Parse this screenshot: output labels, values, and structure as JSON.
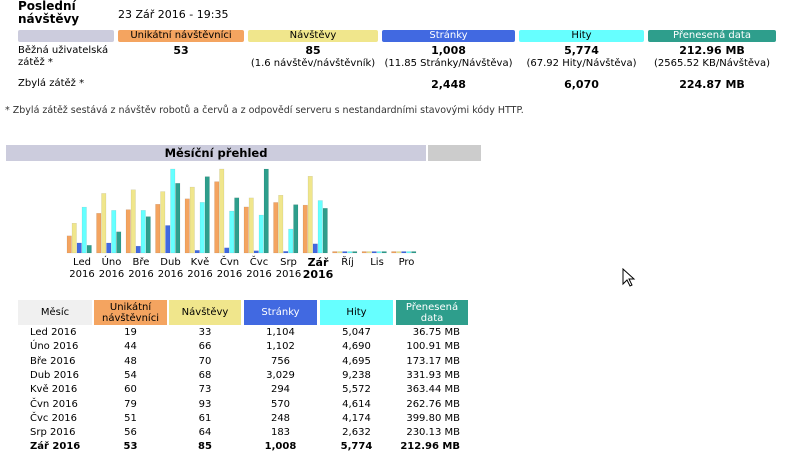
{
  "summary": {
    "title": "Poslední návštěvy",
    "date": "23 Zář 2016 - 19:35",
    "columns": [
      "Unikátní návštěvníci",
      "Návštěvy",
      "Stránky",
      "Hity",
      "Přenesená data"
    ],
    "colors": [
      "#f4a460",
      "#f0e68c",
      "#4169e1",
      "#66ffff",
      "#2e9e8c"
    ],
    "row1_label": "Běžná uživatelská zátěž *",
    "row1": [
      "53",
      "85",
      "1,008",
      "5,774",
      "212.96 MB"
    ],
    "row1_sub": [
      "",
      "(1.6 návštěv/návštěvník)",
      "(11.85 Stránky/Návštěva)",
      "(67.92 Hity/Návštěva)",
      "(2565.52 KB/Návštěva)"
    ],
    "row2_label": "Zbylá zátěž *",
    "row2": [
      "",
      "",
      "2,448",
      "6,070",
      "224.87 MB"
    ],
    "note": "* Zbylá zátěž sestává z návštěv robotů a červů a z odpovědí serveru s nestandardními stavovými kódy HTTP."
  },
  "monthly": {
    "title": "Měsíční přehled",
    "chart_data": {
      "type": "bar",
      "categories": [
        "Led 2016",
        "Úno 2016",
        "Bře 2016",
        "Dub 2016",
        "Kvě 2016",
        "Čvn 2016",
        "Čvc 2016",
        "Srp 2016",
        "Zář 2016",
        "Říj 2016",
        "Lis 2016",
        "Pro 2016"
      ],
      "series": [
        {
          "name": "Unikátní návštěvníci",
          "color": "#f4a460",
          "values": [
            19,
            44,
            48,
            54,
            60,
            79,
            51,
            56,
            53,
            0,
            0,
            0
          ]
        },
        {
          "name": "Návštěvy",
          "color": "#f0e68c",
          "values": [
            33,
            66,
            70,
            68,
            73,
            93,
            61,
            64,
            85,
            0,
            0,
            0
          ]
        },
        {
          "name": "Stránky",
          "color": "#4169e1",
          "values": [
            1104,
            1102,
            756,
            3029,
            294,
            570,
            248,
            183,
            1008,
            0,
            0,
            0
          ]
        },
        {
          "name": "Hity",
          "color": "#66ffff",
          "values": [
            5047,
            4690,
            4695,
            9238,
            5572,
            4614,
            4174,
            2632,
            5774,
            0,
            0,
            0
          ]
        },
        {
          "name": "Přenesená data",
          "color": "#2e9e8c",
          "values": [
            36.75,
            100.91,
            173.17,
            331.93,
            363.44,
            262.76,
            399.8,
            230.13,
            212.96,
            0,
            0,
            0
          ]
        }
      ],
      "current_index": 8
    },
    "labels_top": [
      "Led",
      "Úno",
      "Bře",
      "Dub",
      "Kvě",
      "Čvn",
      "Čvc",
      "Srp",
      "Zář",
      "Říj",
      "Lis",
      "Pro"
    ],
    "labels_bottom": [
      "2016",
      "2016",
      "2016",
      "2016",
      "2016",
      "2016",
      "2016",
      "2016",
      "2016",
      "",
      "",
      ""
    ],
    "table_headers": [
      "Měsíc",
      "Unikátní návštěvníci",
      "Návštěvy",
      "Stránky",
      "Hity",
      "Přenesená data"
    ],
    "rows": [
      [
        "Led 2016",
        "19",
        "33",
        "1,104",
        "5,047",
        "36.75 MB"
      ],
      [
        "Úno 2016",
        "44",
        "66",
        "1,102",
        "4,690",
        "100.91 MB"
      ],
      [
        "Bře 2016",
        "48",
        "70",
        "756",
        "4,695",
        "173.17 MB"
      ],
      [
        "Dub 2016",
        "54",
        "68",
        "3,029",
        "9,238",
        "331.93 MB"
      ],
      [
        "Kvě 2016",
        "60",
        "73",
        "294",
        "5,572",
        "363.44 MB"
      ],
      [
        "Čvn 2016",
        "79",
        "93",
        "570",
        "4,614",
        "262.76 MB"
      ],
      [
        "Čvc 2016",
        "51",
        "61",
        "248",
        "4,174",
        "399.80 MB"
      ],
      [
        "Srp 2016",
        "56",
        "64",
        "183",
        "2,632",
        "230.13 MB"
      ],
      [
        "Zář 2016",
        "53",
        "85",
        "1,008",
        "5,774",
        "212.96 MB"
      ]
    ]
  }
}
